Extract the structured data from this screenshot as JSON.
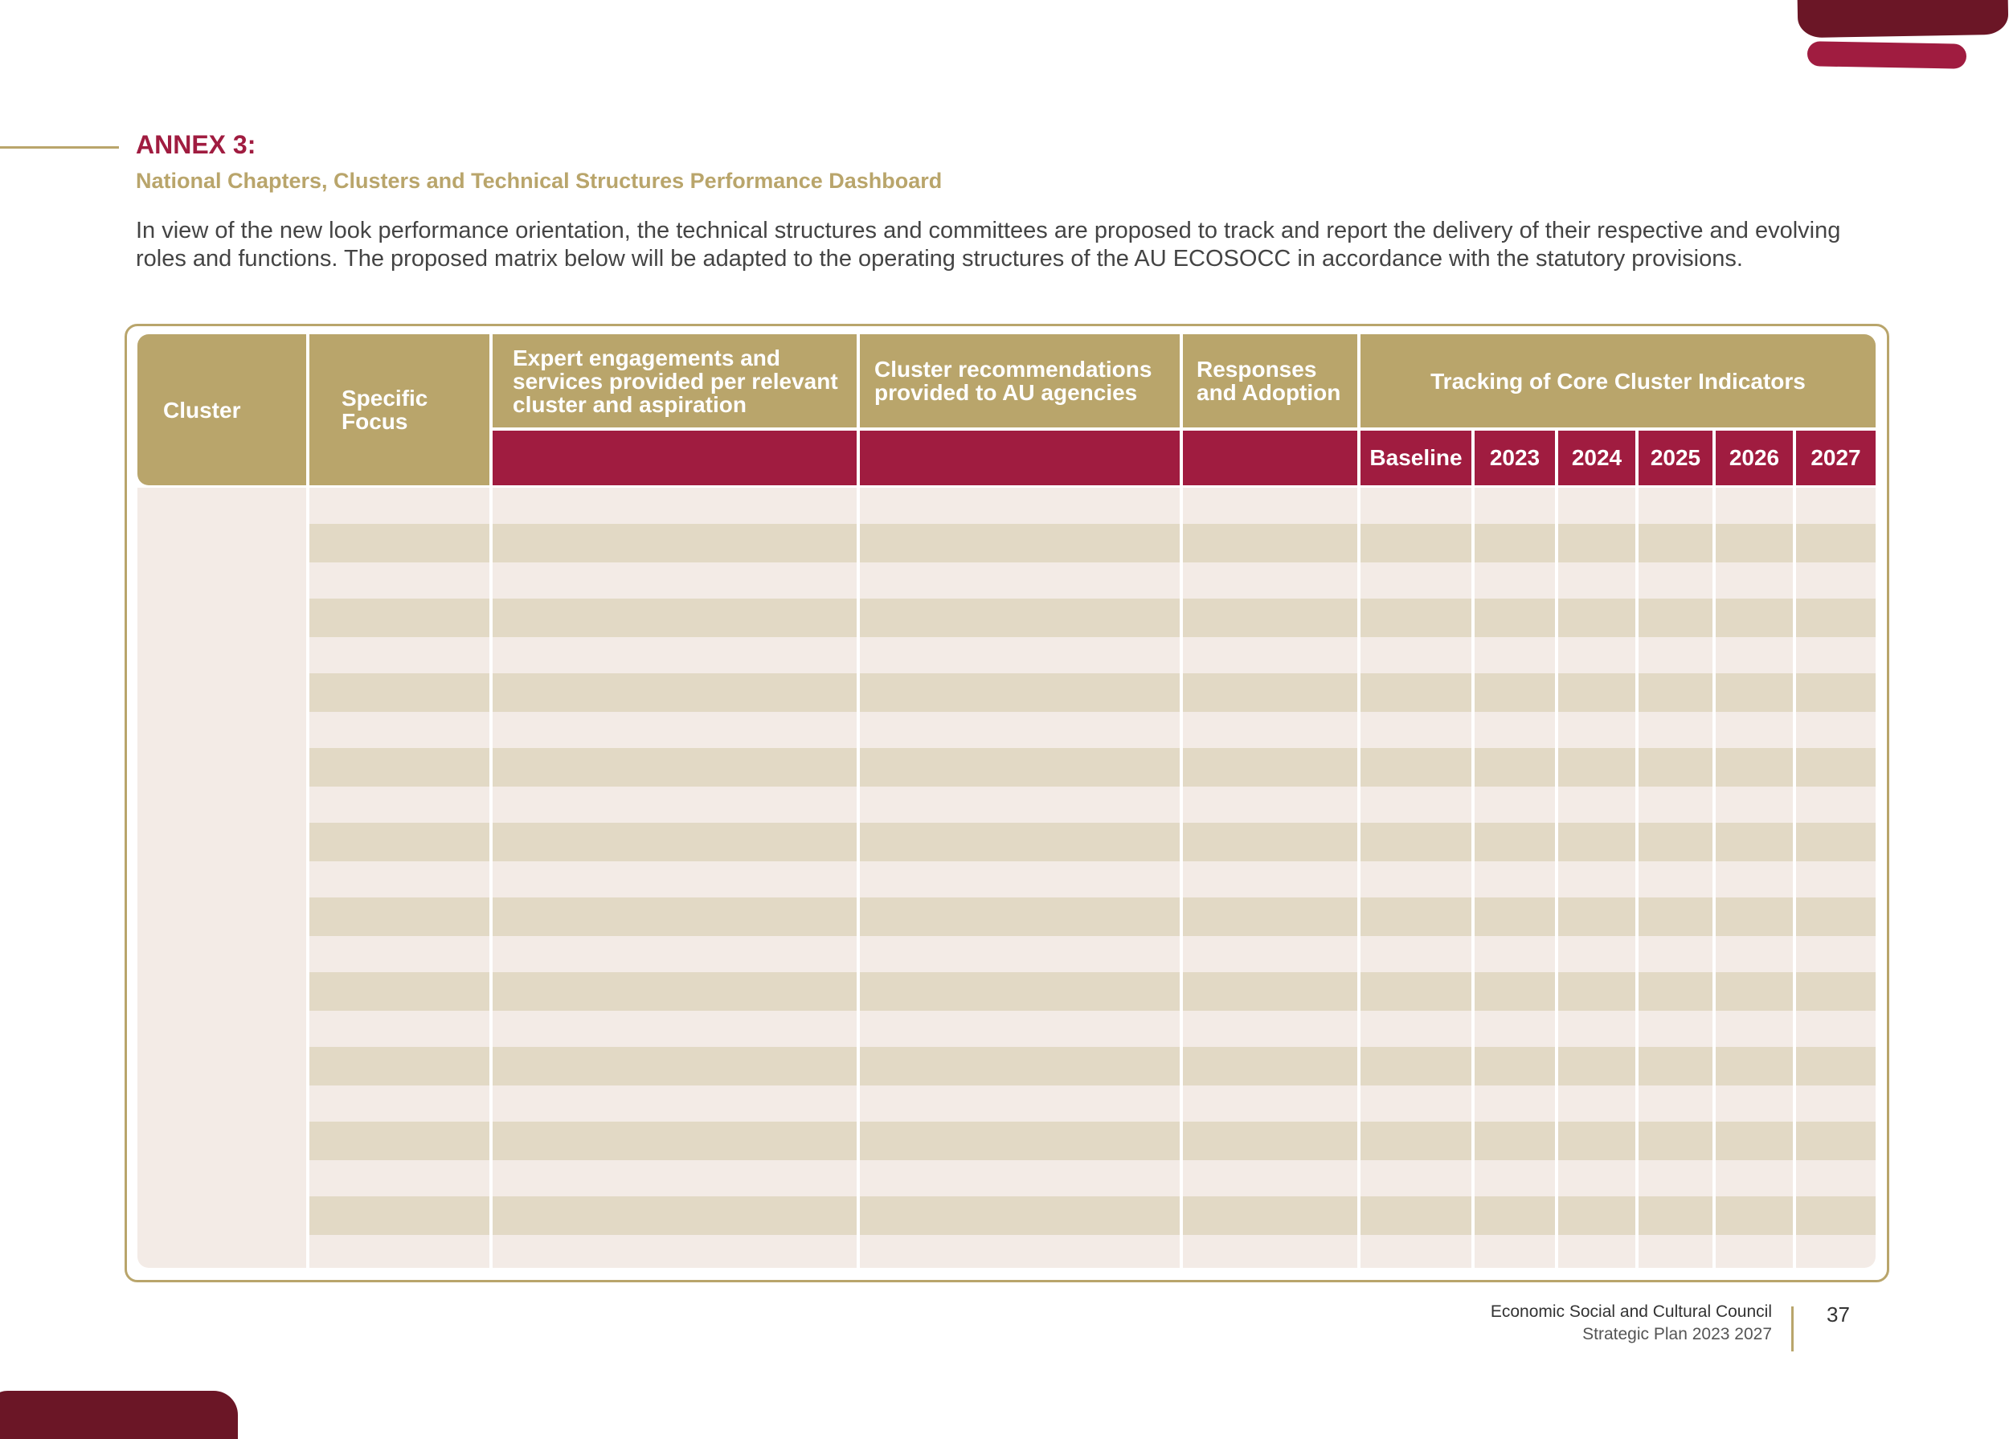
{
  "header": {
    "title": "ANNEX 3:",
    "subtitle": "National Chapters, Clusters and Technical Structures Performance Dashboard"
  },
  "intro": "In view of the new look performance orientation, the technical structures and committees are proposed to track and report the delivery of their respective and evolving roles and functions. The proposed matrix below will be adapted to the operating structures of the AU ECOSOCC in accordance with the statutory provisions.",
  "table": {
    "columns": [
      "Cluster",
      "Specific Focus",
      "Expert engagements and services provided per relevant cluster and aspiration",
      "Cluster recommendations provided to AU agencies",
      "Responses and Adoption",
      "Tracking of Core Cluster Indicators"
    ],
    "tracking_columns": [
      "Baseline",
      "2023",
      "2024",
      "2025",
      "2026",
      "2027"
    ]
  },
  "footer": {
    "organization": "Economic Social and Cultural Council",
    "plan": "Strategic Plan 2023 2027",
    "page": "37"
  }
}
